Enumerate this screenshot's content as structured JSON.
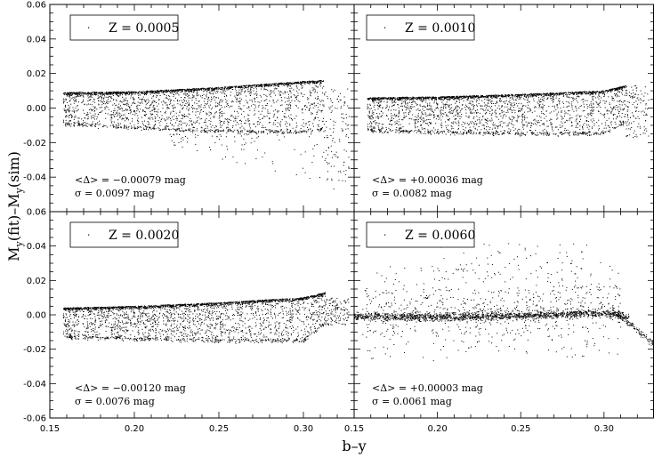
{
  "chart_data": {
    "type": "scatter",
    "xlabel": "b–y",
    "ylabel": "M_y(fit)–M_y(sim)",
    "xlim": [
      0.15,
      0.33
    ],
    "ylim": [
      -0.06,
      0.06
    ],
    "xticks": [
      "0.15",
      "0.20",
      "0.25",
      "0.30"
    ],
    "xtick_values": [
      0.15,
      0.2,
      0.25,
      0.3
    ],
    "yticks": [
      "-0.06",
      "-0.04",
      "-0.02",
      "0.00",
      "0.02",
      "0.04",
      "0.06"
    ],
    "ytick_values": [
      -0.06,
      -0.04,
      -0.02,
      0.0,
      0.02,
      0.04,
      0.06
    ],
    "marker_color": "#000000",
    "panels": [
      {
        "legend": "Z = 0.0005",
        "mean_label": "<Δ> = −0.00079 mag",
        "sigma_label": "σ = 0.0097 mag",
        "x_range": [
          0.158,
          0.325
        ],
        "upper_edge": [
          [
            0.158,
            0.009
          ],
          [
            0.2,
            0.0095
          ],
          [
            0.25,
            0.012
          ],
          [
            0.3,
            0.0155
          ],
          [
            0.312,
            0.016
          ]
        ],
        "lower_edge": [
          [
            0.158,
            -0.009
          ],
          [
            0.2,
            -0.0115
          ],
          [
            0.25,
            -0.0135
          ],
          [
            0.3,
            -0.014
          ],
          [
            0.312,
            -0.012
          ]
        ],
        "sparse_tail": "below, to -0.043 near b-y 0.31"
      },
      {
        "legend": "Z = 0.0010",
        "mean_label": "<Δ> = +0.00036 mag",
        "sigma_label": "σ = 0.0082 mag",
        "x_range": [
          0.158,
          0.325
        ],
        "upper_edge": [
          [
            0.158,
            0.006
          ],
          [
            0.2,
            0.0065
          ],
          [
            0.25,
            0.008
          ],
          [
            0.3,
            0.01
          ],
          [
            0.313,
            0.013
          ]
        ],
        "lower_edge": [
          [
            0.158,
            -0.013
          ],
          [
            0.2,
            -0.014
          ],
          [
            0.25,
            -0.015
          ],
          [
            0.3,
            -0.015
          ],
          [
            0.313,
            -0.008
          ]
        ],
        "sparse_tail": "to -0.019 near b-y 0.30"
      },
      {
        "legend": "Z = 0.0020",
        "mean_label": "<Δ> = −0.00120 mag",
        "sigma_label": "σ = 0.0076 mag",
        "x_range": [
          0.158,
          0.325
        ],
        "upper_edge": [
          [
            0.158,
            0.004
          ],
          [
            0.2,
            0.005
          ],
          [
            0.25,
            0.007
          ],
          [
            0.3,
            0.01
          ],
          [
            0.313,
            0.013
          ]
        ],
        "lower_edge": [
          [
            0.158,
            -0.013
          ],
          [
            0.2,
            -0.014
          ],
          [
            0.25,
            -0.015
          ],
          [
            0.3,
            -0.015
          ],
          [
            0.313,
            -0.005
          ]
        ],
        "sparse_tail": "up to 0.015 near b-y 0.31"
      },
      {
        "legend": "Z = 0.0060",
        "mean_label": "<Δ> = +0.00003 mag",
        "sigma_label": "σ = 0.0061 mag",
        "x_range": [
          0.15,
          0.33
        ],
        "upper_edge": [
          [
            0.15,
            0.0
          ],
          [
            0.2,
            0.001
          ],
          [
            0.25,
            0.002
          ],
          [
            0.3,
            0.004
          ],
          [
            0.31,
            0.004
          ]
        ],
        "lower_edge": [
          [
            0.15,
            -0.002
          ],
          [
            0.2,
            -0.004
          ],
          [
            0.25,
            -0.003
          ],
          [
            0.3,
            -0.002
          ],
          [
            0.32,
            -0.008
          ]
        ],
        "sparse_tail": "scatter up to 0.042 near b-y 0.25; down to -0.017 near b-y 0.33"
      }
    ]
  }
}
